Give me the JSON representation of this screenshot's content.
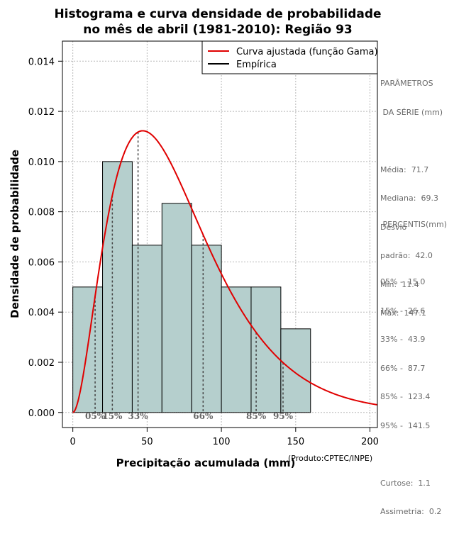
{
  "chart_data": {
    "type": "bar",
    "title_line1": "Histograma e curva densidade de probabilidade",
    "title_line2": "no mês de abril (1981-2010): Região 93",
    "xlabel": "Precipitação acumulada (mm)",
    "ylabel": "Densidade de probabilidade",
    "credit": "(Produto:CPTEC/INPE)",
    "xlim": [
      -7,
      205
    ],
    "ylim": [
      -0.0006,
      0.0148
    ],
    "x_ticks": [
      0,
      50,
      100,
      150,
      200
    ],
    "y_ticks": [
      0.0,
      0.002,
      0.004,
      0.006,
      0.008,
      0.01,
      0.012,
      0.014
    ],
    "y_tick_labels": [
      "0.000",
      "0.002",
      "0.004",
      "0.006",
      "0.008",
      "0.010",
      "0.012",
      "0.014"
    ],
    "grid": true,
    "bins": [
      {
        "x0": 0,
        "x1": 20,
        "density": 0.005
      },
      {
        "x0": 20,
        "x1": 40,
        "density": 0.01
      },
      {
        "x0": 40,
        "x1": 60,
        "density": 0.006667
      },
      {
        "x0": 60,
        "x1": 80,
        "density": 0.008333
      },
      {
        "x0": 80,
        "x1": 100,
        "density": 0.006667
      },
      {
        "x0": 100,
        "x1": 120,
        "density": 0.005
      },
      {
        "x0": 120,
        "x1": 140,
        "density": 0.005
      },
      {
        "x0": 140,
        "x1": 160,
        "density": 0.003333
      }
    ],
    "bar_color": "#b5cfcd",
    "curve": {
      "dist": "gamma",
      "shape": 2.914,
      "scale": 24.6,
      "color": "#e00000",
      "x_min": 0,
      "x_max": 205
    },
    "percentile_markers": [
      {
        "label": "05%",
        "value": 15.0
      },
      {
        "label": "15%",
        "value": 26.6
      },
      {
        "label": "33%",
        "value": 43.9
      },
      {
        "label": "66%",
        "value": 87.7
      },
      {
        "label": "85%",
        "value": 123.4
      },
      {
        "label": "95%",
        "value": 141.5
      }
    ],
    "legend": {
      "position": "top-right",
      "entries": [
        {
          "label": "Curva ajustada (função Gama)",
          "color": "#e00000"
        },
        {
          "label": "Empírica",
          "color": "#000000"
        }
      ]
    }
  },
  "stats_panel": {
    "params_title_1": "PARÂMETROS",
    "params_title_2": " DA SÉRIE (mm)",
    "lines": [
      "Média:  71.7",
      "Mediana:  69.3",
      "Desvio",
      "padrão:  42.0",
      "Mín:  11.4",
      "Máx:  147.1"
    ],
    "percentis_title": " PERCENTIS(mm)",
    "percentis": [
      "05% -  15.0",
      "15% -  26.6",
      "33% -  43.9",
      "66% -  87.7",
      "85% -  123.4",
      "95% -  141.5"
    ],
    "curtose": "Curtose:  1.1",
    "assimetria": "Assimetria:  0.2"
  }
}
